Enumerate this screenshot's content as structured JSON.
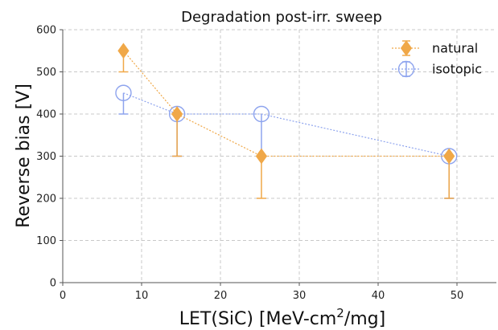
{
  "chart_data": {
    "type": "scatter",
    "title": "Degradation post-irr. sweep",
    "xlabel_main": "LET(SiC) [MeV-cm",
    "xlabel_sup": "2",
    "xlabel_tail": "/mg]",
    "ylabel": "Reverse bias [V]",
    "xlim": [
      0,
      55
    ],
    "ylim": [
      0,
      600
    ],
    "xticks": [
      0,
      10,
      20,
      30,
      40,
      50
    ],
    "yticks": [
      0,
      100,
      200,
      300,
      400,
      500,
      600
    ],
    "grid": true,
    "legend_position": "top-right",
    "series": [
      {
        "name": "natural",
        "color": "#f0a848",
        "marker": "diamond",
        "x": [
          7.7,
          14.5,
          25.2,
          49
        ],
        "y": [
          550,
          400,
          300,
          300
        ],
        "yerr_low": [
          50,
          100,
          100,
          100
        ],
        "yerr_high": [
          0,
          0,
          0,
          0
        ]
      },
      {
        "name": "isotopic",
        "color": "#8ea4ee",
        "marker": "circle-open",
        "x": [
          7.7,
          14.5,
          25.2,
          49
        ],
        "y": [
          450,
          400,
          400,
          300
        ],
        "yerr_low": [
          50,
          100,
          100,
          100
        ],
        "yerr_high": [
          0,
          0,
          0,
          0
        ]
      }
    ]
  }
}
